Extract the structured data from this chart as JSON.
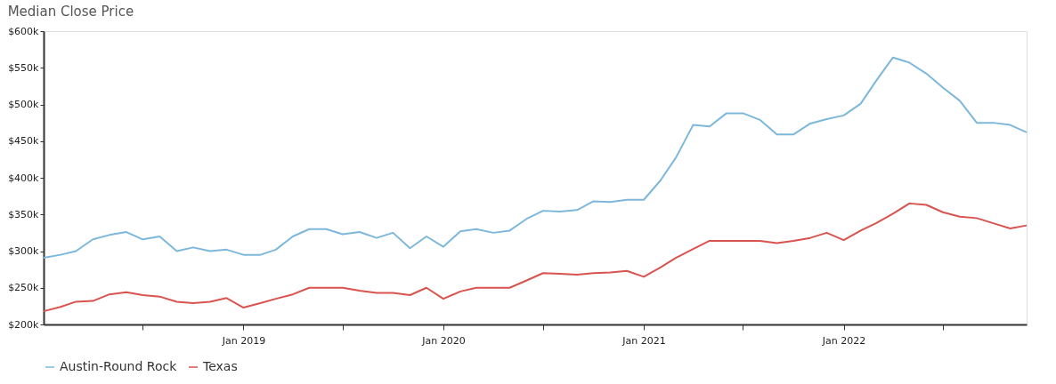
{
  "chart_data": {
    "type": "line",
    "title": "Median Close Price",
    "x": [
      "2018-01",
      "2018-02",
      "2018-03",
      "2018-04",
      "2018-05",
      "2018-06",
      "2018-07",
      "2018-08",
      "2018-09",
      "2018-10",
      "2018-11",
      "2018-12",
      "2019-01",
      "2019-02",
      "2019-03",
      "2019-04",
      "2019-05",
      "2019-06",
      "2019-07",
      "2019-08",
      "2019-09",
      "2019-10",
      "2019-11",
      "2019-12",
      "2020-01",
      "2020-02",
      "2020-03",
      "2020-04",
      "2020-05",
      "2020-06",
      "2020-07",
      "2020-08",
      "2020-09",
      "2020-10",
      "2020-11",
      "2020-12",
      "2021-01",
      "2021-02",
      "2021-03",
      "2021-04",
      "2021-05",
      "2021-06",
      "2021-07",
      "2021-08",
      "2021-09",
      "2021-10",
      "2021-11",
      "2021-12",
      "2022-01",
      "2022-02",
      "2022-03",
      "2022-04",
      "2022-05",
      "2022-06",
      "2022-07",
      "2022-08",
      "2022-09",
      "2022-10",
      "2022-11",
      "2022-12"
    ],
    "series": [
      {
        "name": "Austin-Round Rock",
        "color": "#7db8dc",
        "values": [
          291000,
          295000,
          300000,
          316000,
          322000,
          326000,
          316000,
          320000,
          300000,
          305000,
          300000,
          302000,
          295000,
          295000,
          302000,
          320000,
          330000,
          330000,
          323000,
          326000,
          318000,
          325000,
          304000,
          320000,
          306000,
          327000,
          330000,
          325000,
          328000,
          344000,
          355000,
          354000,
          356000,
          368000,
          367000,
          370000,
          370000,
          397000,
          428000,
          472000,
          470000,
          488000,
          488000,
          479000,
          459000,
          459000,
          474000,
          480000,
          485000,
          501000,
          532000,
          564000,
          557000,
          542000,
          523000,
          505000,
          475000,
          475000,
          472000,
          462000
        ]
      },
      {
        "name": "Texas",
        "color": "#d9534f",
        "values": [
          218000,
          224000,
          231000,
          232000,
          241000,
          244000,
          240000,
          238000,
          231000,
          229000,
          231000,
          236000,
          223000,
          229000,
          235000,
          241000,
          250000,
          250000,
          250000,
          246000,
          243000,
          243000,
          240000,
          250000,
          235000,
          245000,
          250000,
          250000,
          250000,
          260000,
          270000,
          269000,
          268000,
          270000,
          271000,
          273000,
          265000,
          278000,
          291000,
          303000,
          314000,
          314000,
          314000,
          314000,
          311000,
          314000,
          318000,
          325000,
          315000,
          328000,
          338000,
          351000,
          365000,
          363000,
          353000,
          347000,
          345000,
          338000,
          331000,
          335000
        ]
      }
    ],
    "xlim": [
      "2018-01",
      "2022-12"
    ],
    "xticks": [
      {
        "value": "2018-07",
        "label": null
      },
      {
        "value": "2019-01",
        "label": "Jan 2019"
      },
      {
        "value": "2019-07",
        "label": null
      },
      {
        "value": "2020-01",
        "label": "Jan 2020"
      },
      {
        "value": "2020-07",
        "label": null
      },
      {
        "value": "2021-01",
        "label": "Jan 2021"
      },
      {
        "value": "2021-07",
        "label": null
      },
      {
        "value": "2022-01",
        "label": "Jan 2022"
      },
      {
        "value": "2022-07",
        "label": null
      }
    ],
    "ylim": [
      200000,
      600000
    ],
    "yticks": [
      {
        "value": 200000,
        "label": "$200k"
      },
      {
        "value": 250000,
        "label": "$250k"
      },
      {
        "value": 300000,
        "label": "$300k"
      },
      {
        "value": 350000,
        "label": "$350k"
      },
      {
        "value": 400000,
        "label": "$400k"
      },
      {
        "value": 450000,
        "label": "$450k"
      },
      {
        "value": 500000,
        "label": "$500k"
      },
      {
        "value": 550000,
        "label": "$550k"
      },
      {
        "value": 600000,
        "label": "$600k"
      }
    ],
    "grid": false,
    "legend": "bottom",
    "marker": "none",
    "line_style": "solid"
  }
}
